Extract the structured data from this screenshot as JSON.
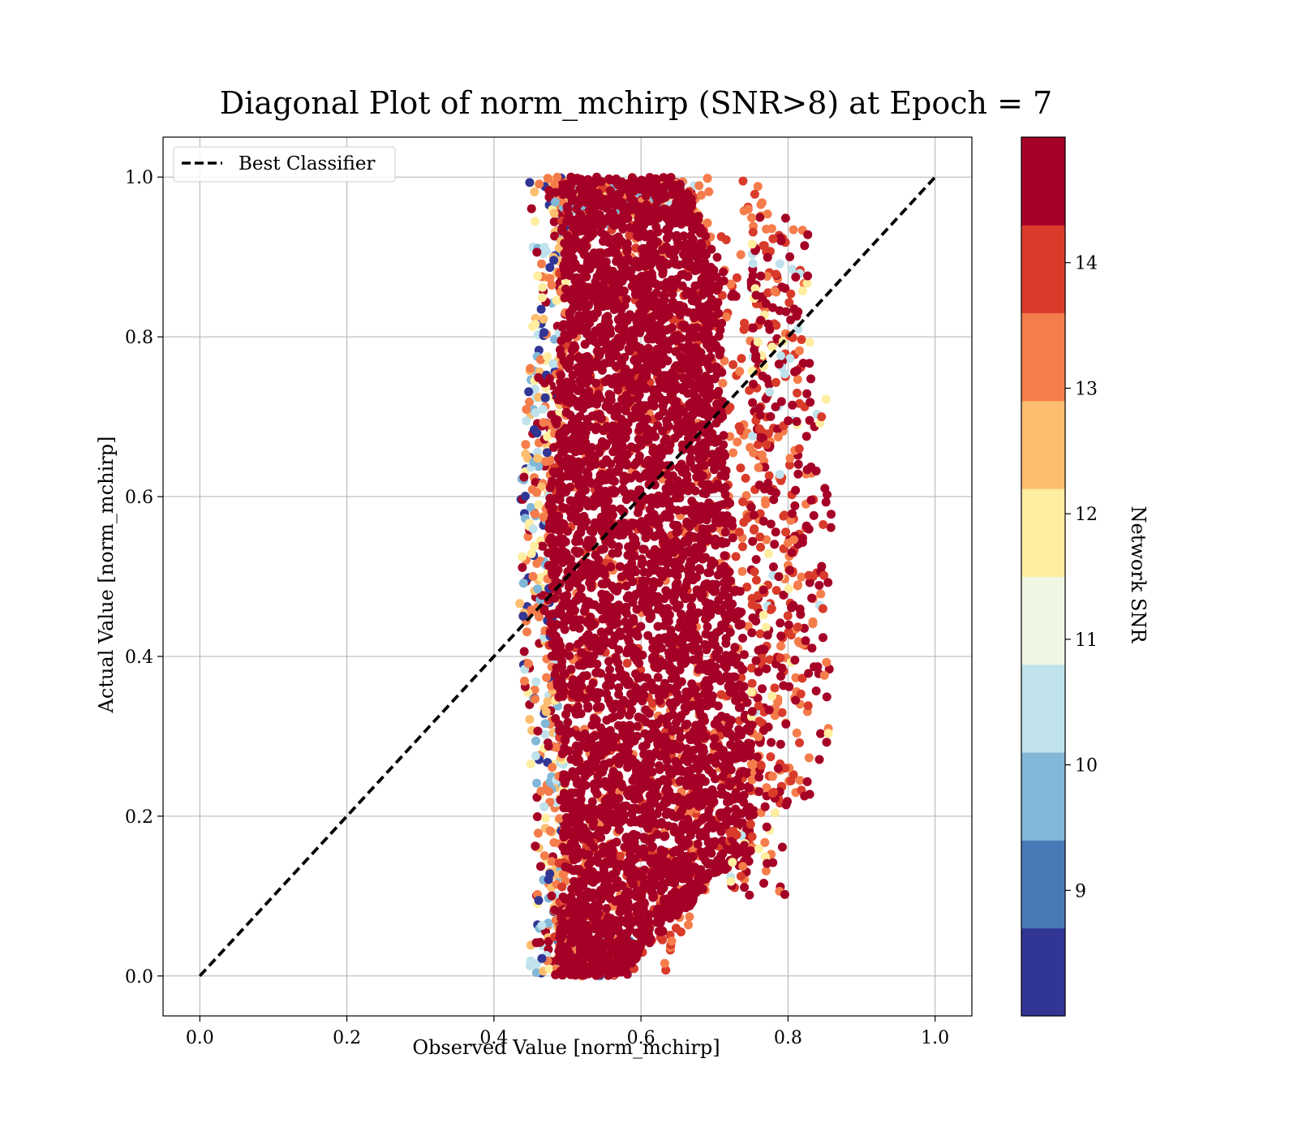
{
  "chart_data": {
    "type": "scatter",
    "title": "Diagonal Plot of norm_mchirp (SNR>8) at Epoch = 7",
    "xlabel": "Observed Value [norm_mchirp]",
    "ylabel": "Actual Value [norm_mchirp]",
    "xlim": [
      -0.05,
      1.05
    ],
    "ylim": [
      -0.05,
      1.05
    ],
    "x_ticks": [
      "0.0",
      "0.2",
      "0.4",
      "0.6",
      "0.8",
      "1.0"
    ],
    "y_ticks": [
      "0.0",
      "0.2",
      "0.4",
      "0.6",
      "0.8",
      "1.0"
    ],
    "grid": true,
    "legend": {
      "position": "top-left",
      "entries": [
        {
          "label": "Best Classifier",
          "style": "dashed",
          "color": "#000000"
        }
      ]
    },
    "reference_line": {
      "name": "Best Classifier",
      "x": [
        0.0,
        1.0
      ],
      "y": [
        0.0,
        1.0
      ],
      "style": "dashed",
      "color": "#000000"
    },
    "scatter": {
      "description": "dense cloud of points, observed values mostly between 0.43 and 0.86, actual values between 0.0 and 1.0; most points high SNR (dark red)",
      "dense_core": {
        "x_range": [
          0.48,
          0.72
        ],
        "y_range": [
          0.0,
          1.0
        ]
      }
    },
    "colorbar": {
      "label": "Network SNR",
      "range": [
        8,
        15
      ],
      "ticks": [
        "9",
        "10",
        "11",
        "12",
        "13",
        "14"
      ],
      "tick_values": [
        9,
        10,
        11,
        12,
        13,
        14
      ],
      "colors": [
        "#313695",
        "#4a79b8",
        "#82b7d7",
        "#bfe2ec",
        "#edf7e1",
        "#ffeda0",
        "#fdbe6f",
        "#f57d4b",
        "#d93b2b",
        "#a50026"
      ]
    }
  }
}
